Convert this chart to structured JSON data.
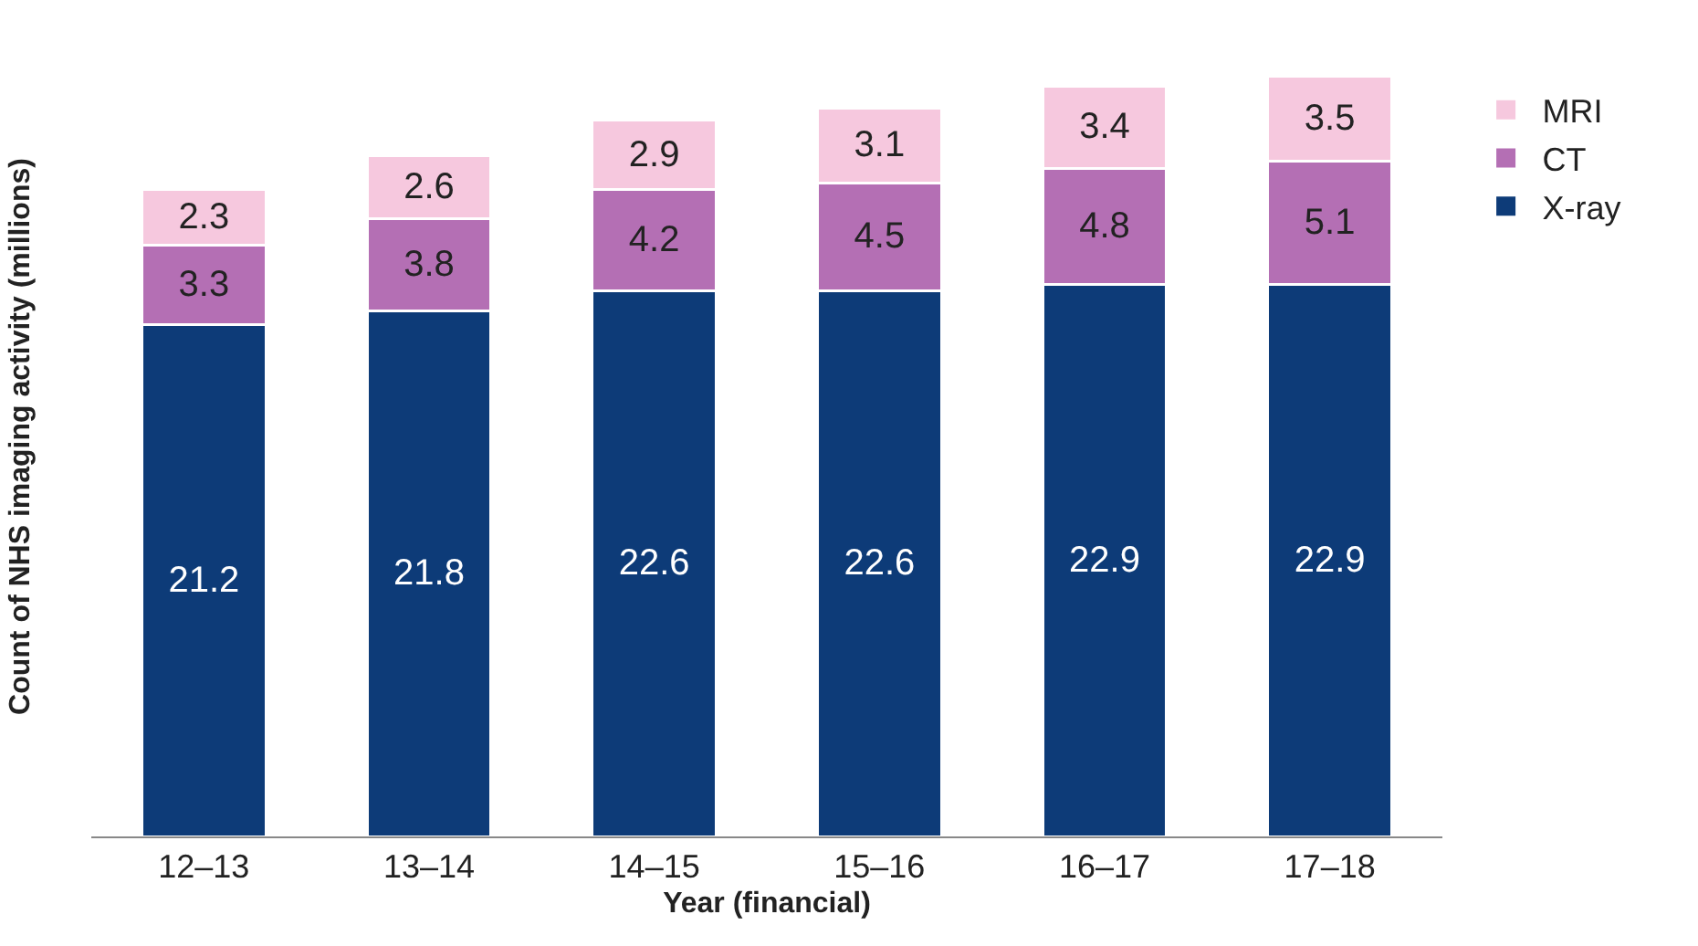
{
  "chart_data": {
    "type": "bar",
    "stacked": true,
    "xlabel": "Year (financial)",
    "ylabel": "Count of NHS imaging activity (millions)",
    "categories": [
      "12–13",
      "13–14",
      "14–15",
      "15–16",
      "16–17",
      "17–18"
    ],
    "series": [
      {
        "name": "X-ray",
        "color": "#0d3b78",
        "values": [
          21.2,
          21.8,
          22.6,
          22.6,
          22.9,
          22.9
        ]
      },
      {
        "name": "CT",
        "color": "#b46fb4",
        "values": [
          3.3,
          3.8,
          4.2,
          4.5,
          4.8,
          5.1
        ]
      },
      {
        "name": "MRI",
        "color": "#f6c8de",
        "values": [
          2.3,
          2.6,
          2.9,
          3.1,
          3.4,
          3.5
        ]
      }
    ],
    "data_labels": true,
    "legend": "right",
    "grid": false,
    "tick_labels": "x"
  }
}
